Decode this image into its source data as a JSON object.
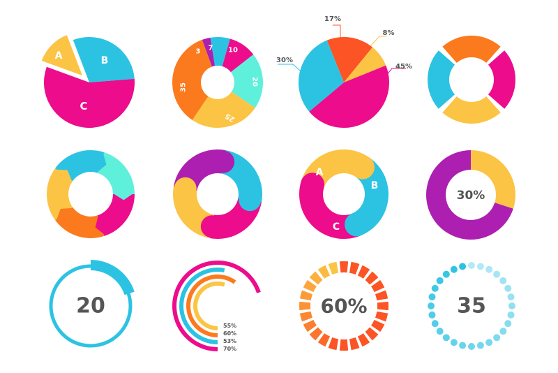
{
  "colors": {
    "pink": "#ec0c8c",
    "cyan": "#2cc3e3",
    "yellow": "#fcc444",
    "orange": "#fc7a1e",
    "mint": "#5ff0dc",
    "purple": "#ad1fb0",
    "red_orange": "#fc5424",
    "text_gray": "#555555"
  },
  "chart_data": [
    {
      "type": "pie",
      "name": "pie-abc",
      "exploded": "A",
      "slices": [
        {
          "label": "A",
          "value": 12,
          "color": "yellow"
        },
        {
          "label": "B",
          "value": 26,
          "color": "cyan"
        },
        {
          "label": "C",
          "value": 50,
          "color": "pink"
        }
      ]
    },
    {
      "type": "donut",
      "name": "donut-labeled",
      "slices": [
        {
          "label": "3",
          "value": 3,
          "color": "purple"
        },
        {
          "label": "7",
          "value": 7,
          "color": "cyan"
        },
        {
          "label": "10",
          "value": 10,
          "color": "pink"
        },
        {
          "label": "20",
          "value": 20,
          "color": "mint"
        },
        {
          "label": "25",
          "value": 25,
          "color": "yellow"
        },
        {
          "label": "35",
          "value": 35,
          "color": "orange"
        }
      ]
    },
    {
      "type": "pie",
      "name": "pie-percent",
      "slices": [
        {
          "label": "17%",
          "value": 17,
          "color": "red_orange"
        },
        {
          "label": "8%",
          "value": 8,
          "color": "yellow"
        },
        {
          "label": "45%",
          "value": 45,
          "color": "pink"
        },
        {
          "label": "30%",
          "value": 30,
          "color": "cyan"
        }
      ]
    },
    {
      "type": "donut",
      "name": "donut-segmented",
      "slices": [
        {
          "value": 25,
          "color": "orange"
        },
        {
          "value": 25,
          "color": "pink"
        },
        {
          "value": 25,
          "color": "yellow"
        },
        {
          "value": 25,
          "color": "cyan"
        }
      ]
    },
    {
      "type": "donut",
      "name": "donut-arrows",
      "slices": [
        {
          "value": 20,
          "color": "mint"
        },
        {
          "value": 20,
          "color": "pink"
        },
        {
          "value": 20,
          "color": "orange"
        },
        {
          "value": 20,
          "color": "yellow"
        },
        {
          "value": 20,
          "color": "cyan"
        }
      ]
    },
    {
      "type": "donut",
      "name": "donut-wavy",
      "slices": [
        {
          "value": 25,
          "color": "cyan"
        },
        {
          "value": 25,
          "color": "pink"
        },
        {
          "value": 25,
          "color": "yellow"
        },
        {
          "value": 25,
          "color": "purple"
        }
      ]
    },
    {
      "type": "donut",
      "name": "donut-abc",
      "slices": [
        {
          "label": "B",
          "value": 34,
          "color": "cyan"
        },
        {
          "label": "C",
          "value": 36,
          "color": "pink"
        },
        {
          "label": "A",
          "value": 30,
          "color": "yellow"
        }
      ]
    },
    {
      "type": "donut",
      "name": "donut-30",
      "center_label": "30%",
      "slices": [
        {
          "value": 30,
          "color": "yellow"
        },
        {
          "value": 70,
          "color": "purple"
        }
      ]
    },
    {
      "type": "progress_ring",
      "name": "ring-20",
      "center_label": "20",
      "progress": 0.2,
      "color": "cyan"
    },
    {
      "type": "multi_arc",
      "name": "arcs-legend",
      "labels": [
        "55%",
        "60%",
        "53%",
        "70%"
      ],
      "series": [
        {
          "value": 70,
          "color": "pink"
        },
        {
          "value": 53,
          "color": "cyan"
        },
        {
          "value": 60,
          "color": "orange"
        },
        {
          "value": 55,
          "color": "yellow"
        }
      ]
    },
    {
      "type": "tick_ring",
      "name": "ticks-60",
      "center_label": "60%",
      "ticks": 24,
      "progress": 0.6,
      "color_from": "red_orange",
      "color_to": "yellow"
    },
    {
      "type": "dot_ring",
      "name": "dots-35",
      "center_label": "35",
      "dots": 28,
      "color": "cyan"
    }
  ]
}
